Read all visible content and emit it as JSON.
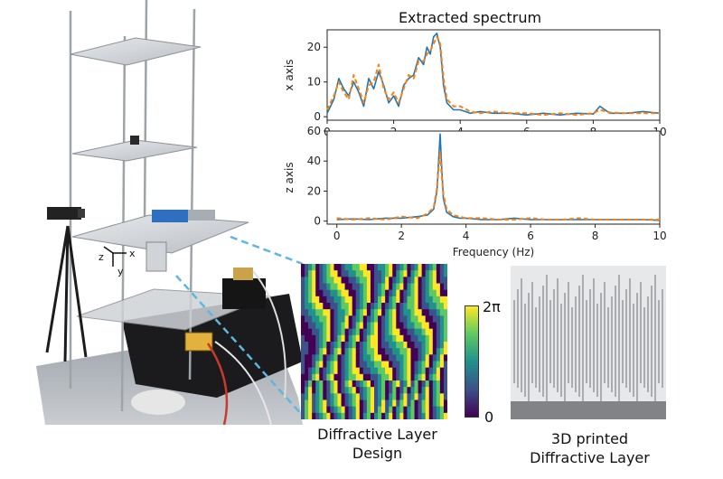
{
  "figure": {
    "title": "Extracted spectrum",
    "photo_axes": {
      "x": "x",
      "y": "y",
      "z": "z"
    },
    "colorbar": {
      "max_label": "2π",
      "min_label": "0"
    },
    "captions": {
      "design_line1": "Diffractive Layer",
      "design_line2": "Design",
      "printed_line1": "3D printed",
      "printed_line2": "Diffractive Layer"
    },
    "colors": {
      "series_measured": "#1f77b4",
      "series_extracted": "#ff7f0e"
    }
  },
  "chart_data": [
    {
      "type": "line",
      "ylabel": "x axis",
      "xlabel": "",
      "xlim": [
        0,
        10
      ],
      "ylim": [
        -1,
        25
      ],
      "xticks": [
        "0",
        "2",
        "4",
        "6",
        "8",
        "10"
      ],
      "yticks": [
        "0",
        "10",
        "20"
      ],
      "series": [
        {
          "x": [
            0,
            0.2,
            0.35,
            0.5,
            0.65,
            0.8,
            0.95,
            1.1,
            1.25,
            1.4,
            1.55,
            1.7,
            1.85,
            2.0,
            2.15,
            2.3,
            2.45,
            2.6,
            2.75,
            2.9,
            3.0,
            3.1,
            3.2,
            3.3,
            3.4,
            3.5,
            3.6,
            3.8,
            4.0,
            4.3,
            4.6,
            5.0,
            5.5,
            6.0,
            6.5,
            7.0,
            7.5,
            8.0,
            8.2,
            8.5,
            9.0,
            9.5,
            10
          ],
          "y": [
            1,
            5,
            11,
            8,
            6,
            10,
            7,
            3,
            11,
            8,
            13,
            9,
            4,
            6,
            3,
            9,
            11,
            12,
            17,
            15,
            20,
            18,
            23,
            24,
            20,
            9,
            4,
            2,
            2,
            1,
            1.5,
            1,
            1,
            0.5,
            1,
            0.5,
            1,
            0.8,
            3,
            1,
            1,
            1.5,
            1
          ]
        },
        {
          "x": [
            0,
            0.2,
            0.35,
            0.5,
            0.65,
            0.8,
            0.95,
            1.1,
            1.25,
            1.4,
            1.55,
            1.7,
            1.85,
            2.0,
            2.15,
            2.3,
            2.45,
            2.6,
            2.75,
            2.9,
            3.0,
            3.1,
            3.2,
            3.3,
            3.4,
            3.5,
            3.6,
            3.8,
            4.0,
            4.3,
            4.6,
            5.0,
            5.5,
            6.0,
            6.5,
            7.0,
            7.5,
            8.0,
            8.2,
            8.5,
            9.0,
            9.5,
            10
          ],
          "y": [
            2,
            6,
            10,
            7,
            5,
            12,
            8,
            4,
            9,
            10,
            15,
            8,
            5,
            7,
            4,
            8,
            12,
            11,
            16,
            16,
            18,
            19,
            21,
            23,
            21,
            11,
            5,
            3,
            3,
            1.5,
            1,
            1.5,
            1,
            1,
            0.5,
            1,
            0.5,
            1,
            2,
            1.2,
            1,
            1,
            1
          ]
        }
      ]
    },
    {
      "type": "line",
      "ylabel": "z axis",
      "xlabel": "Frequency (Hz)",
      "xlim": [
        -0.3,
        10
      ],
      "ylim": [
        -2,
        60
      ],
      "xticks": [
        "0",
        "2",
        "4",
        "6",
        "8",
        "10"
      ],
      "yticks": [
        "0",
        "20",
        "40",
        "60"
      ],
      "series": [
        {
          "x": [
            0,
            0.5,
            1,
            1.5,
            2,
            2.5,
            2.8,
            3.0,
            3.1,
            3.15,
            3.2,
            3.25,
            3.3,
            3.4,
            3.6,
            3.8,
            4.0,
            4.5,
            5,
            5.5,
            6,
            6.5,
            7,
            7.5,
            8,
            8.5,
            9,
            9.5,
            10
          ],
          "y": [
            1,
            1.5,
            1,
            2,
            2,
            3,
            4,
            8,
            20,
            40,
            58,
            35,
            15,
            6,
            3,
            2,
            2,
            1,
            1,
            2,
            1,
            1,
            1,
            1,
            1,
            1,
            1,
            1,
            0.5
          ]
        },
        {
          "x": [
            0,
            0.5,
            1,
            1.5,
            2,
            2.5,
            2.8,
            3.0,
            3.1,
            3.15,
            3.2,
            3.25,
            3.3,
            3.4,
            3.6,
            3.8,
            4.0,
            4.5,
            5,
            5.5,
            6,
            6.5,
            7,
            7.5,
            8,
            8.5,
            9,
            9.5,
            10
          ],
          "y": [
            2,
            1,
            2,
            1,
            3,
            2,
            5,
            9,
            22,
            35,
            46,
            30,
            18,
            8,
            4,
            3,
            2,
            2,
            1,
            1,
            2,
            1,
            1,
            2,
            1,
            1,
            1,
            1,
            1
          ]
        }
      ]
    }
  ]
}
